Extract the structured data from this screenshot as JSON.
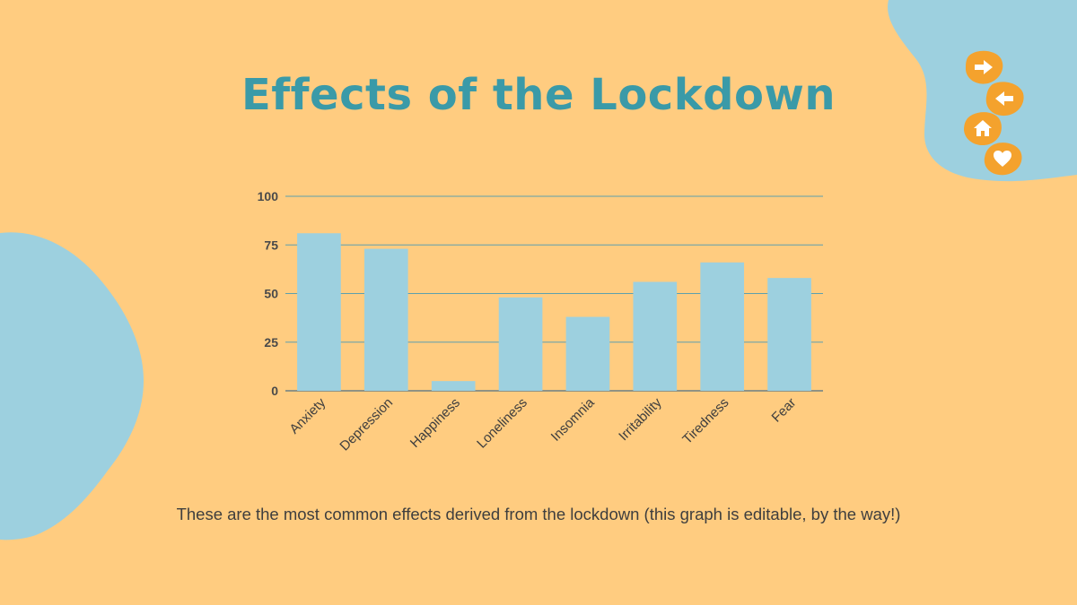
{
  "slide": {
    "title": "Effects of the Lockdown",
    "caption": "These are the most common effects derived from the lockdown (this graph is editable, by the way!)",
    "colors": {
      "background": "#FFCC80",
      "accent_blue": "#9DD0DF",
      "title_teal": "#3A9AA8",
      "nav_orange": "#F4A22D"
    }
  },
  "nav": {
    "buttons": [
      {
        "icon": "arrow-right-icon"
      },
      {
        "icon": "arrow-left-icon"
      },
      {
        "icon": "home-icon"
      },
      {
        "icon": "heart-icon"
      }
    ]
  },
  "chart_data": {
    "type": "bar",
    "categories": [
      "Anxiety",
      "Depression",
      "Happiness",
      "Loneliness",
      "Insomnia",
      "Irritability",
      "Tiredness",
      "Fear"
    ],
    "values": [
      81,
      73,
      5,
      48,
      38,
      56,
      66,
      58
    ],
    "yticks": [
      "0",
      "25",
      "50",
      "75",
      "100"
    ],
    "ylim": [
      0,
      100
    ],
    "grid": true,
    "bar_color": "#9DD0DF",
    "grid_color": "#5E9FAD"
  }
}
